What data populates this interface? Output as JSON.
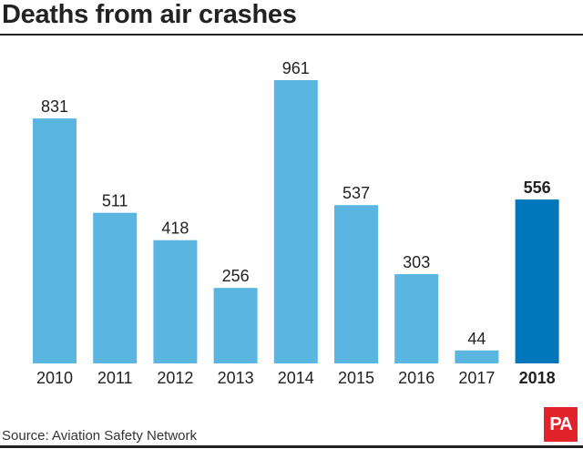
{
  "title": "Deaths from air crashes",
  "source": "Source: Aviation Safety Network",
  "logo": "PA",
  "colors": {
    "bar": "#5ab6e0",
    "highlight": "#0077bb",
    "logo": "#e3232b"
  },
  "chart_data": {
    "type": "bar",
    "title": "Deaths from air crashes",
    "categories": [
      "2010",
      "2011",
      "2012",
      "2013",
      "2014",
      "2015",
      "2016",
      "2017",
      "2018"
    ],
    "values": [
      831,
      511,
      418,
      256,
      961,
      537,
      303,
      44,
      556
    ],
    "highlight": "2018",
    "ylim": [
      0,
      961
    ],
    "grid": false,
    "data_labels": true
  }
}
